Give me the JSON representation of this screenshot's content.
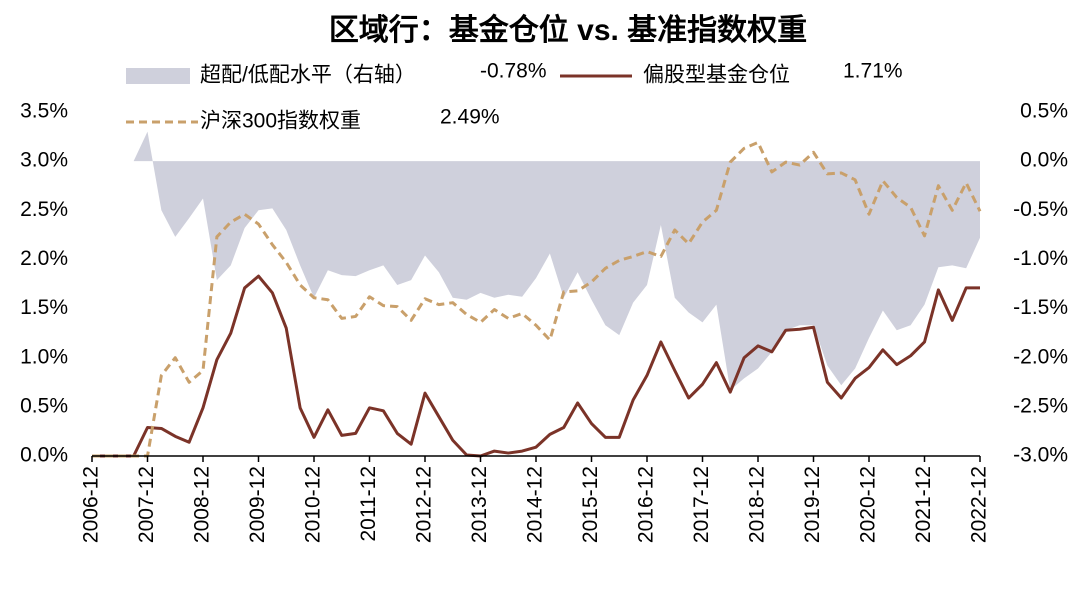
{
  "chart_data": {
    "type": "line",
    "title": "区域行：基金仓位 vs. 基准指数权重",
    "categories": [
      "2006-12",
      null,
      null,
      null,
      "2007-12",
      null,
      null,
      null,
      "2008-12",
      null,
      null,
      null,
      "2009-12",
      null,
      null,
      null,
      "2010-12",
      null,
      null,
      null,
      "2011-12",
      null,
      null,
      null,
      "2012-12",
      null,
      null,
      null,
      "2013-12",
      null,
      null,
      null,
      "2014-12",
      null,
      null,
      null,
      "2015-12",
      null,
      null,
      null,
      "2016-12",
      null,
      null,
      null,
      "2017-12",
      null,
      null,
      null,
      "2018-12",
      null,
      null,
      null,
      "2019-12",
      null,
      null,
      null,
      "2020-12",
      null,
      null,
      null,
      "2021-12",
      null,
      null,
      null,
      "2022-12"
    ],
    "ylim": [
      0,
      3.5
    ],
    "yticks": [
      {
        "value": 0,
        "label": "0.0%"
      },
      {
        "value": 0.5,
        "label": "0.5%"
      },
      {
        "value": 1,
        "label": "1.0%"
      },
      {
        "value": 1.5,
        "label": "1.5%"
      },
      {
        "value": 2,
        "label": "2.0%"
      },
      {
        "value": 2.5,
        "label": "2.5%"
      },
      {
        "value": 3,
        "label": "3.0%"
      },
      {
        "value": 3.5,
        "label": "3.5%"
      }
    ],
    "y2lim": [
      -3,
      0.5
    ],
    "y2ticks": [
      {
        "value": -3,
        "label": "-3.0%"
      },
      {
        "value": -2.5,
        "label": "-2.5%"
      },
      {
        "value": -2,
        "label": "-2.0%"
      },
      {
        "value": -1.5,
        "label": "-1.5%"
      },
      {
        "value": -1,
        "label": "-1.0%"
      },
      {
        "value": -0.5,
        "label": "-0.5%"
      },
      {
        "value": 0,
        "label": "0.0%"
      },
      {
        "value": 0.5,
        "label": "0.5%"
      }
    ],
    "series": [
      {
        "name": "超配/低配水平（右轴）",
        "legend_value": "-0.78%",
        "style": "area",
        "axis": "y2",
        "color": "#cfd0dc",
        "values": [
          null,
          null,
          null,
          0,
          0.3,
          -0.5,
          -0.77,
          -0.58,
          -0.38,
          -1.21,
          -1.06,
          -0.68,
          -0.5,
          -0.48,
          -0.7,
          -1.06,
          -1.39,
          -1.11,
          -1.16,
          -1.17,
          -1.11,
          -1.06,
          -1.26,
          -1.21,
          -0.96,
          -1.13,
          -1.39,
          -1.41,
          -1.34,
          -1.39,
          -1.36,
          -1.38,
          -1.19,
          -0.94,
          -1.39,
          -1.13,
          -1.41,
          -1.67,
          -1.77,
          -1.44,
          -1.26,
          -0.65,
          -1.39,
          -1.54,
          -1.64,
          -1.46,
          -2.33,
          -2.21,
          -2.11,
          -1.94,
          -1.72,
          -1.67,
          -1.67,
          -2.08,
          -2.28,
          -2.11,
          -1.8,
          -1.52,
          -1.72,
          -1.67,
          -1.46,
          -1.08,
          -1.06,
          -1.09,
          -0.78
        ]
      },
      {
        "name": "偏股型基金仓位",
        "legend_value": "1.71%",
        "style": "solid",
        "color": "#7b3328",
        "values": [
          0,
          0,
          0,
          0,
          0.29,
          0.28,
          0.2,
          0.14,
          0.49,
          0.98,
          1.25,
          1.71,
          1.83,
          1.66,
          1.3,
          0.49,
          0.19,
          0.47,
          0.21,
          0.23,
          0.49,
          0.46,
          0.23,
          0.12,
          0.64,
          0.4,
          0.16,
          0.01,
          0,
          0.05,
          0.03,
          0.05,
          0.09,
          0.22,
          0.29,
          0.54,
          0.33,
          0.19,
          0.19,
          0.57,
          0.82,
          1.16,
          0.87,
          0.59,
          0.73,
          0.95,
          0.65,
          1.0,
          1.12,
          1.06,
          1.28,
          1.29,
          1.31,
          0.75,
          0.59,
          0.79,
          0.9,
          1.08,
          0.93,
          1.02,
          1.16,
          1.69,
          1.38,
          1.71,
          1.71
        ]
      },
      {
        "name": "沪深300指数权重",
        "legend_value": "2.49%",
        "style": "dashed",
        "color": "#c9a06b",
        "values": [
          0,
          0,
          0,
          0,
          0,
          0.82,
          1.0,
          0.75,
          0.87,
          2.23,
          2.38,
          2.46,
          2.36,
          2.15,
          1.97,
          1.74,
          1.61,
          1.59,
          1.4,
          1.42,
          1.62,
          1.53,
          1.52,
          1.38,
          1.6,
          1.54,
          1.56,
          1.44,
          1.36,
          1.49,
          1.4,
          1.45,
          1.33,
          1.18,
          1.67,
          1.68,
          1.77,
          1.91,
          1.99,
          2.03,
          2.08,
          2.03,
          2.3,
          2.16,
          2.38,
          2.5,
          2.99,
          3.13,
          3.19,
          2.89,
          2.99,
          2.96,
          3.09,
          2.87,
          2.88,
          2.81,
          2.46,
          2.8,
          2.63,
          2.53,
          2.24,
          2.75,
          2.5,
          2.78,
          2.49
        ]
      }
    ]
  }
}
